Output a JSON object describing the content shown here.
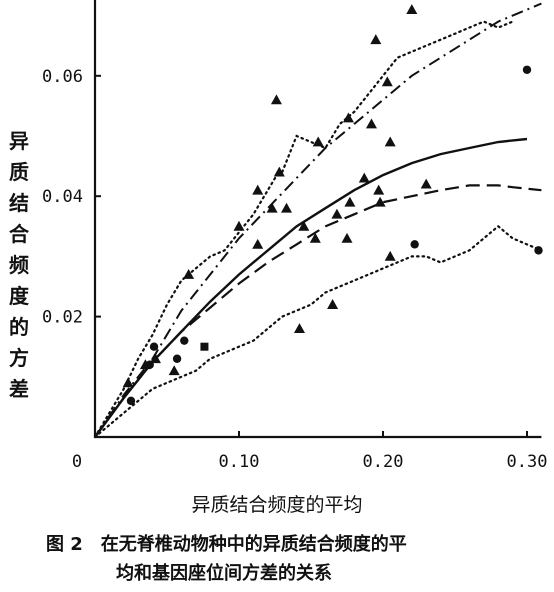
{
  "chart_data": {
    "type": "scatter",
    "xlabel": "异质结合频度的平均",
    "ylabel": "异质结合频度的方差",
    "xlim": [
      0,
      0.31
    ],
    "ylim": [
      0,
      0.073
    ],
    "x_ticks": [
      {
        "value": 0,
        "label": "0"
      },
      {
        "value": 0.1,
        "label": "0.10"
      },
      {
        "value": 0.2,
        "label": "0.20"
      },
      {
        "value": 0.3,
        "label": "0.30"
      }
    ],
    "y_ticks": [
      {
        "value": 0.02,
        "label": "0.02"
      },
      {
        "value": 0.04,
        "label": "0.04"
      },
      {
        "value": 0.06,
        "label": "0.06"
      }
    ],
    "triangles": [
      [
        0.023,
        0.009
      ],
      [
        0.035,
        0.012
      ],
      [
        0.042,
        0.013
      ],
      [
        0.055,
        0.011
      ],
      [
        0.065,
        0.027
      ],
      [
        0.1,
        0.035
      ],
      [
        0.113,
        0.041
      ],
      [
        0.113,
        0.032
      ],
      [
        0.123,
        0.038
      ],
      [
        0.126,
        0.056
      ],
      [
        0.128,
        0.044
      ],
      [
        0.133,
        0.038
      ],
      [
        0.142,
        0.018
      ],
      [
        0.145,
        0.035
      ],
      [
        0.153,
        0.033
      ],
      [
        0.155,
        0.049
      ],
      [
        0.165,
        0.022
      ],
      [
        0.168,
        0.037
      ],
      [
        0.175,
        0.033
      ],
      [
        0.176,
        0.053
      ],
      [
        0.177,
        0.039
      ],
      [
        0.187,
        0.043
      ],
      [
        0.192,
        0.052
      ],
      [
        0.195,
        0.066
      ],
      [
        0.197,
        0.041
      ],
      [
        0.198,
        0.039
      ],
      [
        0.203,
        0.059
      ],
      [
        0.205,
        0.049
      ],
      [
        0.205,
        0.03
      ],
      [
        0.22,
        0.071
      ],
      [
        0.23,
        0.042
      ]
    ],
    "circles": [
      [
        0.025,
        0.006
      ],
      [
        0.038,
        0.012
      ],
      [
        0.041,
        0.015
      ],
      [
        0.057,
        0.013
      ],
      [
        0.062,
        0.016
      ],
      [
        0.222,
        0.032
      ],
      [
        0.3,
        0.061
      ],
      [
        0.308,
        0.031
      ]
    ],
    "squares": [
      [
        0.076,
        0.015
      ]
    ],
    "curves": {
      "solid": [
        [
          0,
          0
        ],
        [
          0.02,
          0.0065
        ],
        [
          0.04,
          0.0125
        ],
        [
          0.06,
          0.0175
        ],
        [
          0.08,
          0.0225
        ],
        [
          0.1,
          0.027
        ],
        [
          0.12,
          0.031
        ],
        [
          0.14,
          0.035
        ],
        [
          0.16,
          0.038
        ],
        [
          0.18,
          0.041
        ],
        [
          0.2,
          0.0435
        ],
        [
          0.22,
          0.0455
        ],
        [
          0.24,
          0.047
        ],
        [
          0.26,
          0.048
        ],
        [
          0.28,
          0.049
        ],
        [
          0.3,
          0.0495
        ]
      ],
      "dashed": [
        [
          0,
          0
        ],
        [
          0.02,
          0.0065
        ],
        [
          0.04,
          0.0125
        ],
        [
          0.06,
          0.0175
        ],
        [
          0.08,
          0.0215
        ],
        [
          0.1,
          0.0255
        ],
        [
          0.12,
          0.029
        ],
        [
          0.14,
          0.032
        ],
        [
          0.16,
          0.035
        ],
        [
          0.18,
          0.037
        ],
        [
          0.2,
          0.039
        ],
        [
          0.22,
          0.04
        ],
        [
          0.24,
          0.041
        ],
        [
          0.26,
          0.0418
        ],
        [
          0.28,
          0.0418
        ],
        [
          0.29,
          0.0415
        ],
        [
          0.31,
          0.041
        ]
      ],
      "dashdot": [
        [
          0,
          0
        ],
        [
          0.02,
          0.007
        ],
        [
          0.04,
          0.013
        ],
        [
          0.06,
          0.021
        ],
        [
          0.08,
          0.027
        ],
        [
          0.1,
          0.033
        ],
        [
          0.12,
          0.038
        ],
        [
          0.14,
          0.043
        ],
        [
          0.16,
          0.048
        ],
        [
          0.18,
          0.052
        ],
        [
          0.2,
          0.056
        ],
        [
          0.22,
          0.06
        ],
        [
          0.24,
          0.063
        ],
        [
          0.26,
          0.066
        ],
        [
          0.28,
          0.069
        ],
        [
          0.3,
          0.071
        ],
        [
          0.31,
          0.072
        ]
      ],
      "upper_band": [
        [
          0,
          0
        ],
        [
          0.01,
          0.004
        ],
        [
          0.02,
          0.008
        ],
        [
          0.03,
          0.013
        ],
        [
          0.04,
          0.017
        ],
        [
          0.05,
          0.022
        ],
        [
          0.06,
          0.026
        ],
        [
          0.07,
          0.028
        ],
        [
          0.08,
          0.03
        ],
        [
          0.09,
          0.031
        ],
        [
          0.1,
          0.034
        ],
        [
          0.11,
          0.037
        ],
        [
          0.12,
          0.041
        ],
        [
          0.125,
          0.043
        ],
        [
          0.13,
          0.044
        ],
        [
          0.135,
          0.047
        ],
        [
          0.14,
          0.05
        ],
        [
          0.15,
          0.049
        ],
        [
          0.16,
          0.048
        ],
        [
          0.17,
          0.052
        ],
        [
          0.18,
          0.054
        ],
        [
          0.19,
          0.057
        ],
        [
          0.2,
          0.06
        ],
        [
          0.21,
          0.063
        ],
        [
          0.22,
          0.064
        ],
        [
          0.23,
          0.065
        ],
        [
          0.24,
          0.066
        ],
        [
          0.25,
          0.067
        ],
        [
          0.26,
          0.068
        ],
        [
          0.27,
          0.069
        ],
        [
          0.28,
          0.068
        ],
        [
          0.29,
          0.069
        ]
      ],
      "lower_band": [
        [
          0,
          0
        ],
        [
          0.01,
          0.002
        ],
        [
          0.02,
          0.004
        ],
        [
          0.03,
          0.006
        ],
        [
          0.04,
          0.008
        ],
        [
          0.05,
          0.009
        ],
        [
          0.06,
          0.01
        ],
        [
          0.07,
          0.011
        ],
        [
          0.08,
          0.013
        ],
        [
          0.09,
          0.014
        ],
        [
          0.1,
          0.015
        ],
        [
          0.11,
          0.016
        ],
        [
          0.12,
          0.018
        ],
        [
          0.13,
          0.02
        ],
        [
          0.14,
          0.021
        ],
        [
          0.15,
          0.022
        ],
        [
          0.16,
          0.024
        ],
        [
          0.17,
          0.025
        ],
        [
          0.18,
          0.026
        ],
        [
          0.19,
          0.027
        ],
        [
          0.2,
          0.028
        ],
        [
          0.21,
          0.029
        ],
        [
          0.22,
          0.03
        ],
        [
          0.23,
          0.03
        ],
        [
          0.24,
          0.029
        ],
        [
          0.25,
          0.03
        ],
        [
          0.26,
          0.031
        ],
        [
          0.27,
          0.033
        ],
        [
          0.28,
          0.035
        ],
        [
          0.29,
          0.033
        ],
        [
          0.3,
          0.032
        ],
        [
          0.31,
          0.031
        ]
      ]
    }
  },
  "labels": {
    "ylabel_chars": [
      "异",
      "质",
      "结",
      "合",
      "频",
      "度",
      "的",
      "方",
      "差"
    ],
    "xlabel": "异质结合频度的平均",
    "caption_fig": "图 2",
    "caption_line1": "在无脊椎动物种中的异质结合频度的平",
    "caption_line2": "均和基因座位间方差的关系"
  }
}
